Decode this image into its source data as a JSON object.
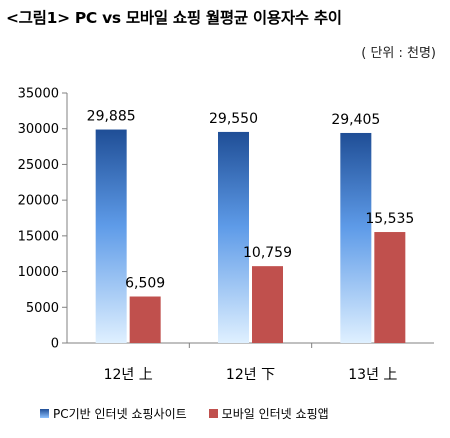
{
  "title": "<그림1> PC vs 모바일 쇼핑 월평균 이용자수 추이",
  "unit_note": "( 단위 : 천명)",
  "colors": {
    "pc_top": "#1f4e96",
    "pc_mid": "#5e9be8",
    "pc_light": "#cfe7ff",
    "mobile": "#c0504d"
  },
  "chart_data": {
    "type": "bar",
    "title": "<그림1> PC vs 모바일 쇼핑 월평균 이용자수 추이",
    "unit": "( 단위 : 천명)",
    "categories": [
      "12년 上",
      "12년 下",
      "13년 上"
    ],
    "series": [
      {
        "name": "PC기반 인터넷 쇼핑사이트",
        "values": [
          29885,
          29550,
          29405
        ],
        "labels": [
          "29,885",
          "29,550",
          "29,405"
        ]
      },
      {
        "name": "모바일 인터넷 쇼핑앱",
        "values": [
          6509,
          10759,
          15535
        ],
        "labels": [
          "6,509",
          "10,759",
          "15,535"
        ]
      }
    ],
    "ylim": [
      0,
      35000
    ],
    "yticks": [
      0,
      5000,
      10000,
      15000,
      20000,
      25000,
      30000,
      35000
    ],
    "grid": false,
    "legend_position": "bottom"
  }
}
